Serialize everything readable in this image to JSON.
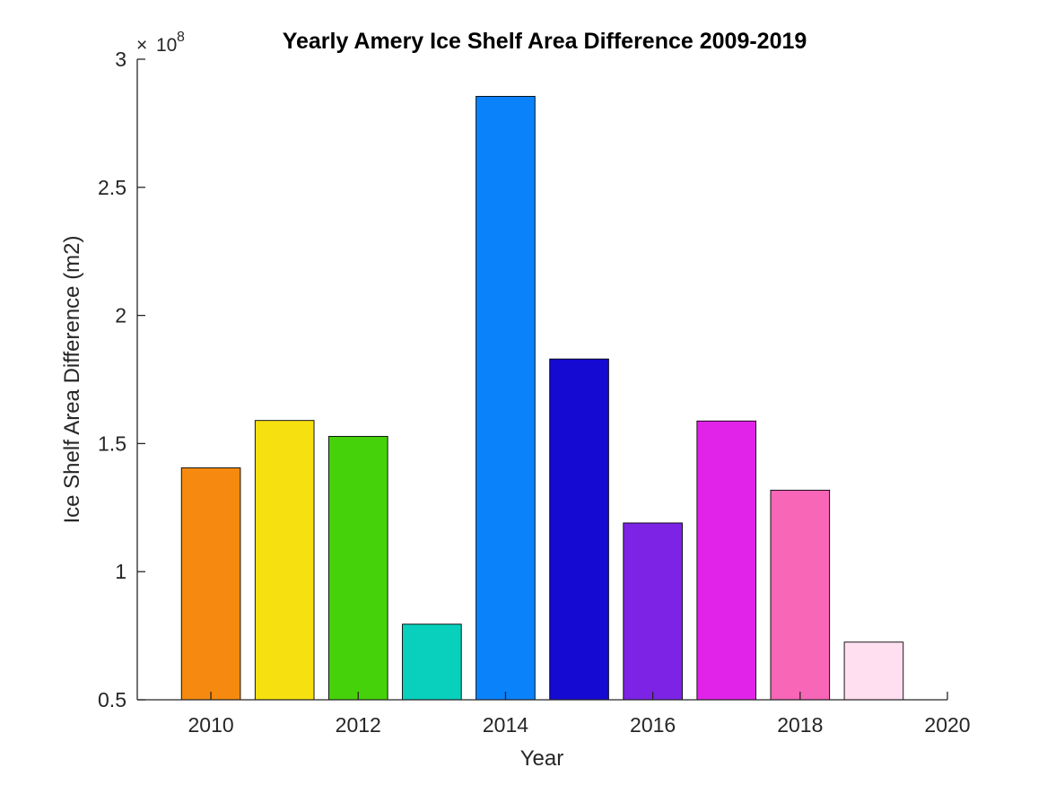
{
  "chart_data": {
    "type": "bar",
    "title": "Yearly Amery Ice Shelf Area Difference 2009-2019",
    "xlabel": "Year",
    "ylabel": "Ice Shelf Area Difference (m2)",
    "y_exponent_label": "10",
    "y_exponent_power": "8",
    "y_exponent_prefix": "×",
    "x": [
      2010,
      2011,
      2012,
      2013,
      2014,
      2015,
      2016,
      2017,
      2018,
      2019
    ],
    "values": [
      140500000,
      159000000,
      152800000,
      79500000,
      285500000,
      183000000,
      119000000,
      158800000,
      131800000,
      72500000
    ],
    "colors": [
      "#f68a10",
      "#f6e010",
      "#46d20a",
      "#08d0bc",
      "#0a82fa",
      "#140ad2",
      "#7c23e6",
      "#e123e9",
      "#f766b7",
      "#ffdff0"
    ],
    "xlim": [
      2009,
      2020
    ],
    "ylim": [
      50000000,
      300000000
    ],
    "xticks": [
      2010,
      2012,
      2014,
      2016,
      2018,
      2020
    ],
    "xtick_labels": [
      "2010",
      "2012",
      "2014",
      "2016",
      "2018",
      "2020"
    ],
    "yticks": [
      50000000,
      100000000,
      150000000,
      200000000,
      250000000,
      300000000
    ],
    "ytick_labels": [
      "0.5",
      "1",
      "1.5",
      "2",
      "2.5",
      "3"
    ],
    "grid": false,
    "legend": "none"
  }
}
